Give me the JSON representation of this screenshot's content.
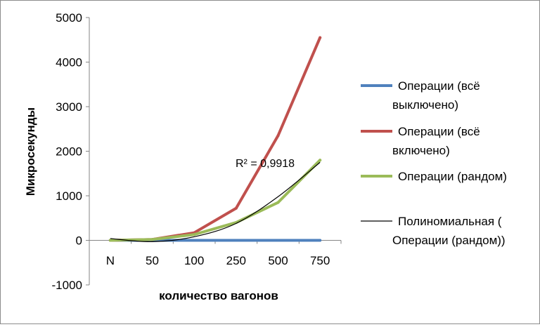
{
  "chart_data": {
    "type": "line",
    "title": "",
    "xlabel": "количество вагонов",
    "ylabel": "Микросекунды",
    "categories": [
      "N",
      "50",
      "100",
      "250",
      "500",
      "750"
    ],
    "ylim": [
      -1000,
      5000
    ],
    "yticks": [
      "5000",
      "4000",
      "3000",
      "2000",
      "1000",
      "0",
      "-1000"
    ],
    "grid": false,
    "legend_position": "right",
    "series": [
      {
        "name_lines": [
          "Операции  (всё",
          "выключено)"
        ],
        "color": "#4f81bd",
        "values": [
          0,
          0,
          0,
          0,
          0,
          0
        ]
      },
      {
        "name_lines": [
          "Операции  (всё",
          "включено)"
        ],
        "color": "#c0504d",
        "values": [
          0,
          20,
          170,
          720,
          2350,
          4550
        ]
      },
      {
        "name_lines": [
          "Операции  (рандом)"
        ],
        "color": "#9bbb59",
        "values": [
          0,
          20,
          130,
          400,
          850,
          1800
        ]
      }
    ],
    "trendline": {
      "name_lines": [
        "Полиномиальная  (",
        "Операции  (рандом))"
      ],
      "color": "#000000",
      "r2_label": "R² = 0,9918",
      "values": [
        40,
        -30,
        80,
        380,
        980,
        1750
      ]
    }
  }
}
